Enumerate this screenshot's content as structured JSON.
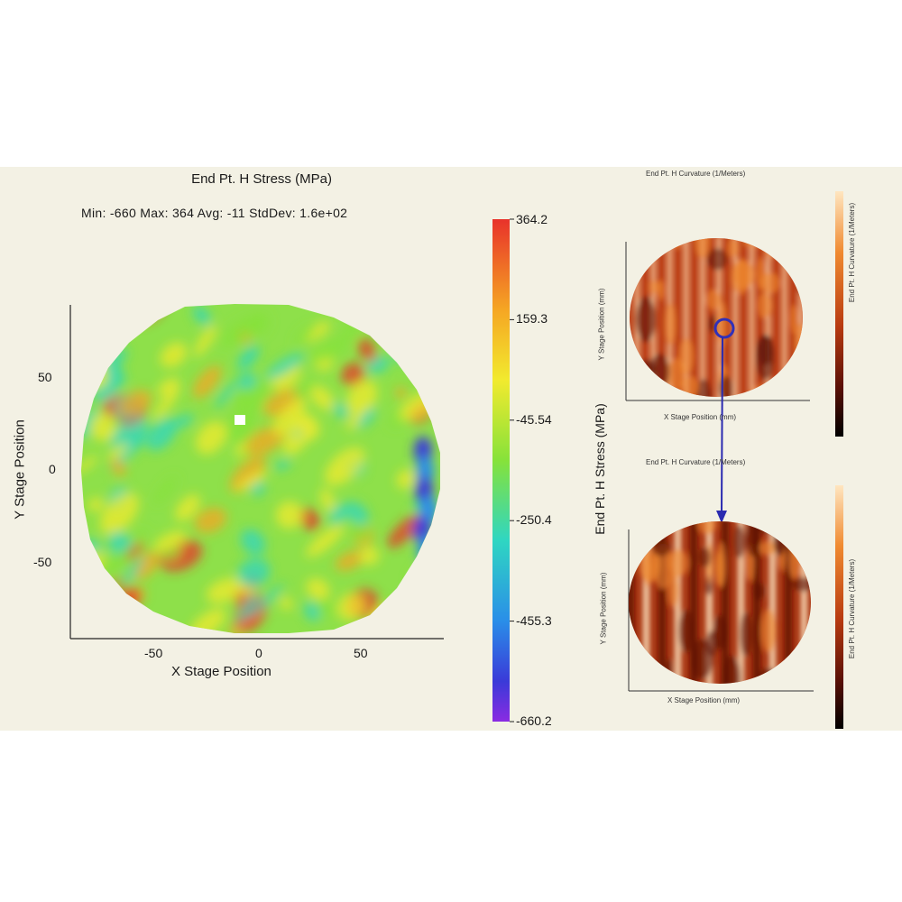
{
  "chart_data": [
    {
      "type": "heatmap",
      "title": "End Pt. H Stress (MPa)",
      "subtitle": "Min: -660 Max: 364 Avg: -11 StdDev: 1.6e+02",
      "xlabel": "X Stage Position",
      "ylabel": "Y Stage Position",
      "x_ticks": [
        "-50",
        "0",
        "50"
      ],
      "y_ticks": [
        "50",
        "0",
        "-50"
      ],
      "xlim": [
        -90,
        90
      ],
      "ylim": [
        -80,
        80
      ],
      "colorbar": {
        "label": "End Pt. H Stress (MPa)",
        "ticks": [
          "364.2",
          "159.3",
          "-45.54",
          "-250.4",
          "-455.3",
          "-660.2"
        ],
        "min": -660.2,
        "max": 364.2,
        "colors": [
          "#e8322a",
          "#f5a623",
          "#f2ea2e",
          "#86e23a",
          "#2fd6c2",
          "#2a8ee8",
          "#3a3ad8",
          "#8a2be2"
        ]
      }
    },
    {
      "type": "heatmap",
      "title": "End Pt. H Curvature (1/Meters)",
      "xlabel": "X Stage Position (mm)",
      "ylabel": "Y Stage Position (mm)",
      "colorbar": {
        "label": "End Pt. H Curvature (1/Meters)",
        "colors": [
          "#ffe6c0",
          "#f08a30",
          "#b83a10",
          "#5a1006",
          "#000000"
        ]
      }
    },
    {
      "type": "heatmap",
      "title": "End Pt. H Curvature (1/Meters)",
      "xlabel": "X Stage Position (mm)",
      "ylabel": "Y Stage Position (mm)",
      "colorbar": {
        "label": "End Pt. H Curvature (1/Meters)",
        "colors": [
          "#ffe6c0",
          "#f08a30",
          "#b83a10",
          "#5a1006",
          "#000000"
        ]
      }
    }
  ],
  "colors": {
    "panel_bg": "#f3f1e4",
    "zoom_arrow": "#2a2ab0"
  }
}
